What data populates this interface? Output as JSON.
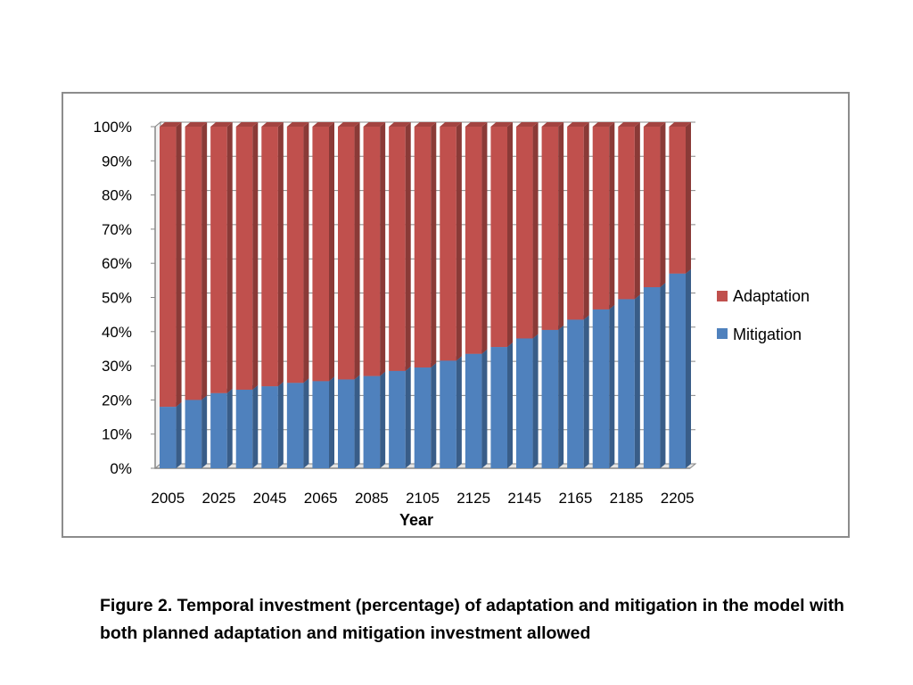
{
  "caption": "Figure 2. Temporal investment (percentage) of adaptation and mitigation in the model with both planned adaptation and mitigation investment allowed",
  "colors": {
    "adaptation": "#c0504d",
    "mitigation": "#4f81bd",
    "axis": "#868686",
    "text": "#000000"
  },
  "chart_data": {
    "type": "bar",
    "stacked": true,
    "percent_stacked": true,
    "style": "3d",
    "xlabel": "Year",
    "ylabel": "",
    "ylim": [
      0,
      100
    ],
    "yticks": [
      "0%",
      "10%",
      "20%",
      "30%",
      "40%",
      "50%",
      "60%",
      "70%",
      "80%",
      "90%",
      "100%"
    ],
    "categories": [
      "2005",
      "2015",
      "2025",
      "2035",
      "2045",
      "2055",
      "2065",
      "2075",
      "2085",
      "2095",
      "2105",
      "2115",
      "2125",
      "2135",
      "2145",
      "2155",
      "2165",
      "2175",
      "2185",
      "2195",
      "2205"
    ],
    "xtick_labels": [
      "2005",
      "2025",
      "2045",
      "2065",
      "2085",
      "2105",
      "2125",
      "2145",
      "2165",
      "2185",
      "2205"
    ],
    "grid": true,
    "legend_position": "right",
    "series": [
      {
        "name": "Adaptation",
        "values": [
          82,
          80,
          78,
          77,
          76,
          75,
          74.5,
          74,
          73,
          71.5,
          70.5,
          68.5,
          66.5,
          64.5,
          62,
          59.5,
          56.5,
          53.5,
          50.5,
          47,
          43
        ]
      },
      {
        "name": "Mitigation",
        "values": [
          18,
          20,
          22,
          23,
          24,
          25,
          25.5,
          26,
          27,
          28.5,
          29.5,
          31.5,
          33.5,
          35.5,
          38,
          40.5,
          43.5,
          46.5,
          49.5,
          53,
          57
        ]
      }
    ]
  }
}
